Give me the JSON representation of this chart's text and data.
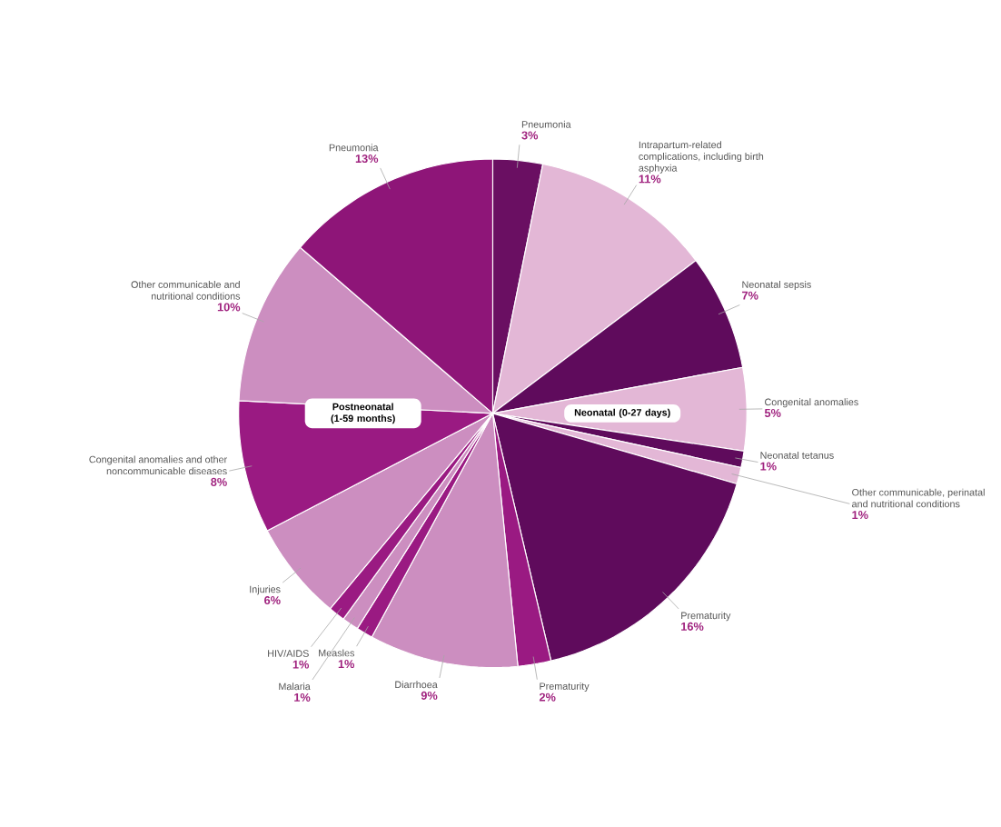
{
  "chart_data": {
    "type": "pie",
    "categories": [
      "Pneumonia",
      "Intrapartum-related complications, including birth asphyxia",
      "Neonatal sepsis",
      "Congenital anomalies",
      "Neonatal tetanus",
      "Other communicable, perinatal and nutritional conditions",
      "Prematurity",
      "Prematurity",
      "Diarrhoea",
      "Measles",
      "Malaria",
      "HIV/AIDS",
      "Injuries",
      "Congenital anomalies and other noncommunicable diseases",
      "Other communicable and nutritional conditions",
      "Pneumonia"
    ],
    "values": [
      3,
      11,
      7,
      5,
      1,
      1,
      16,
      2,
      9,
      1,
      1,
      1,
      6,
      8,
      10,
      13
    ],
    "value_labels": [
      "3%",
      "11%",
      "7%",
      "5%",
      "1%",
      "1%",
      "16%",
      "2%",
      "9%",
      "1%",
      "1%",
      "1%",
      "6%",
      "8%",
      "10%",
      "13%"
    ],
    "colors": [
      "#6a0f62",
      "#e3b7d6",
      "#5f0b5c",
      "#e3b7d6",
      "#5f0b5c",
      "#e3b7d6",
      "#5f0b5c",
      "#9a1a82",
      "#cc8ec0",
      "#9a1a82",
      "#cc8ec0",
      "#9a1a82",
      "#cc8ec0",
      "#9a1a82",
      "#cc8ec0",
      "#8e1578"
    ],
    "annotations": [
      "Postneonatal (1-59 months)",
      "Neonatal (0-27 days)"
    ]
  }
}
